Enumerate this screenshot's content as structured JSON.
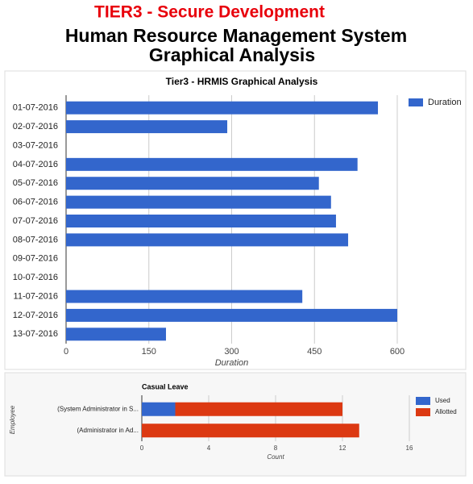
{
  "header": {
    "brand": "TIER3 - Secure Development",
    "title": "Human Resource Management System",
    "subtitle": "Graphical Analysis"
  },
  "chart_data": [
    {
      "type": "hbar",
      "title": "Tier3 - HRMIS Graphical Analysis",
      "categories": [
        "01-07-2016",
        "02-07-2016",
        "03-07-2016",
        "04-07-2016",
        "05-07-2016",
        "06-07-2016",
        "07-07-2016",
        "08-07-2016",
        "09-07-2016",
        "10-07-2016",
        "11-07-2016",
        "12-07-2016",
        "13-07-2016"
      ],
      "series": [
        {
          "name": "Duration",
          "color": "#3366cc",
          "values": [
            565,
            292,
            0,
            528,
            458,
            480,
            489,
            511,
            0,
            0,
            428,
            600,
            181
          ]
        }
      ],
      "x_label": "Duration",
      "xlim": [
        0,
        600
      ],
      "xticks": [
        0,
        150,
        300,
        450,
        600
      ],
      "grid": true,
      "legend": "right",
      "stacked": false
    },
    {
      "type": "hbar",
      "title": "Casual Leave",
      "categories": [
        "(System Administrator in S...",
        "(Administrator in Ad..."
      ],
      "series": [
        {
          "name": "Used",
          "color": "#3366cc",
          "values": [
            2,
            0
          ]
        },
        {
          "name": "Allotted",
          "color": "#dc3912",
          "values": [
            10,
            13
          ]
        }
      ],
      "x_label": "Count",
      "y_label": "Employee",
      "xlim": [
        0,
        16
      ],
      "xticks": [
        0,
        4,
        8,
        12,
        16
      ],
      "grid": true,
      "legend": "right",
      "stacked": true
    }
  ]
}
